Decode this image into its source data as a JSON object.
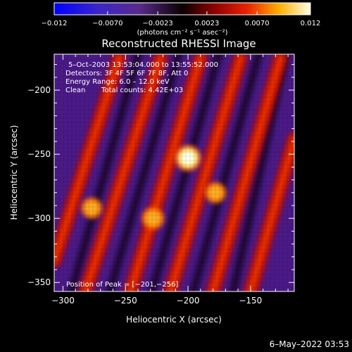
{
  "chart_data": {
    "type": "heatmap",
    "title": "Reconstructed RHESSI Image",
    "xlabel": "Heliocentric X (arcsec)",
    "ylabel": "Heliocentric Y (arcsec)",
    "xlim": [
      -307,
      -115
    ],
    "ylim": [
      -357,
      -172
    ],
    "x_ticks": [
      -300,
      -250,
      -200,
      -150
    ],
    "x_tick_labels": [
      "−300",
      "−250",
      "−200",
      "−150"
    ],
    "y_ticks": [
      -200,
      -250,
      -300,
      -350
    ],
    "y_tick_labels": [
      "−200",
      "−250",
      "−300",
      "−350"
    ],
    "colorbar": {
      "min": -0.012,
      "max": 0.012,
      "ticks": [
        -0.012,
        -0.007,
        -0.0023,
        0.0023,
        0.007,
        0.012
      ],
      "tick_labels": [
        "−0.012",
        "−0.0070",
        "−0.0023",
        "0.0023",
        "0.0070",
        "0.012"
      ],
      "unit_text": "(photons cm⁻² s⁻¹ asec⁻²)"
    },
    "annotations": {
      "time_range": "5–Oct–2003 13:53:04.000 to 13:55:52.000",
      "detectors": "Detectors: 3F 4F 5F 6F 7F 8F, Att 0",
      "energy": "Energy Range: 6.0 – 12.0 keV",
      "clean": "Clean",
      "total_counts": "Total counts: 4.42E+03",
      "peak": "Position of Peak = [−201,−256]"
    },
    "peak_position": [
      -201,
      -256
    ],
    "ridges": [
      {
        "x0": -307,
        "y0": -333,
        "x1": -255,
        "y1": -175
      },
      {
        "x0": -282,
        "y0": -357,
        "x1": -222,
        "y1": -175
      },
      {
        "x0": -246,
        "y0": -357,
        "x1": -190,
        "y1": -175
      },
      {
        "x0": -214,
        "y0": -357,
        "x1": -158,
        "y1": -175
      },
      {
        "x0": -180,
        "y0": -357,
        "x1": -126,
        "y1": -175
      },
      {
        "x0": -150,
        "y0": -357,
        "x1": -115,
        "y1": -238
      }
    ],
    "hotspots": [
      {
        "x": -200,
        "y": -253,
        "value": 0.012
      },
      {
        "x": -228,
        "y": -300,
        "value": 0.0085
      },
      {
        "x": -277,
        "y": -292,
        "value": 0.0075
      },
      {
        "x": -178,
        "y": -280,
        "value": 0.0075
      }
    ]
  },
  "footer": {
    "date": "6–May–2022 03:53"
  }
}
